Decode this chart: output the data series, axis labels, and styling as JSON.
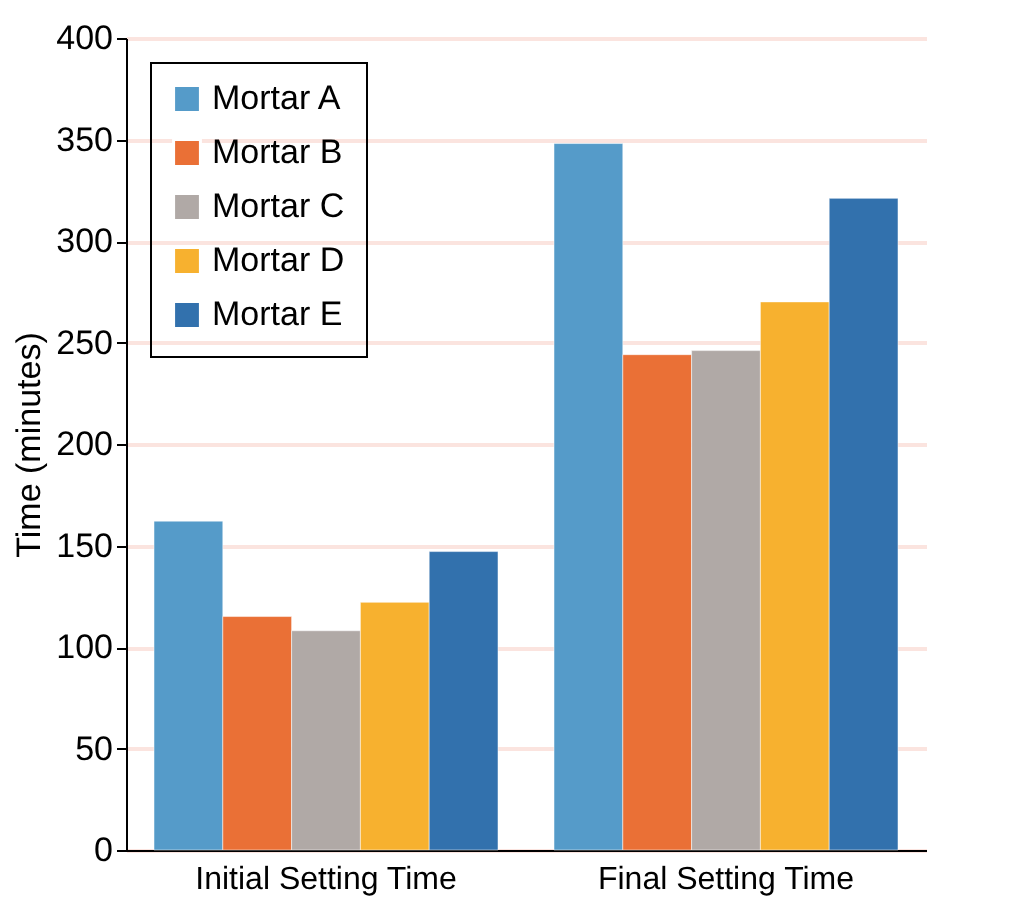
{
  "chart_data": {
    "type": "bar",
    "ylabel": "Time (minutes)",
    "categories": [
      "Initial Setting Time",
      "Final Setting Time"
    ],
    "series": [
      {
        "name": "Mortar A",
        "color": "#559bc9",
        "values": [
          162,
          348
        ]
      },
      {
        "name": "Mortar B",
        "color": "#ea7036",
        "values": [
          115,
          244
        ]
      },
      {
        "name": "Mortar C",
        "color": "#b0a9a6",
        "values": [
          108,
          246
        ]
      },
      {
        "name": "Mortar D",
        "color": "#f7b12f",
        "values": [
          122,
          270
        ]
      },
      {
        "name": "Mortar E",
        "color": "#3271ad",
        "values": [
          147,
          321
        ]
      }
    ],
    "ylim": [
      0,
      400
    ],
    "yticks": [
      0,
      50,
      100,
      150,
      200,
      250,
      300,
      350,
      400
    ],
    "grid": "y",
    "legend": "top left"
  }
}
